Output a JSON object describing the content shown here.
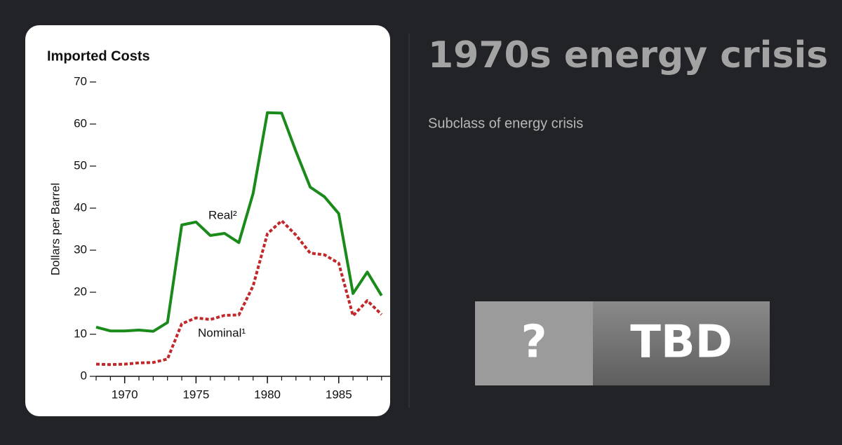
{
  "title": "1970s energy crisis",
  "subtitle": "Subclass of energy crisis",
  "badge": {
    "icon": "?",
    "text": "TBD"
  },
  "chart_data": {
    "type": "line",
    "title": "Imported Costs",
    "y_label": "Dollars per Barrel",
    "x": [
      1968,
      1969,
      1970,
      1971,
      1972,
      1973,
      1974,
      1975,
      1976,
      1977,
      1978,
      1979,
      1980,
      1981,
      1982,
      1983,
      1984,
      1985,
      1986,
      1987,
      1988
    ],
    "series": [
      {
        "name": "Real²",
        "color": "#1a8a1a",
        "dashed": false,
        "values": [
          11.7,
          10.8,
          10.8,
          11,
          10.7,
          12.8,
          36,
          36.7,
          33.5,
          34,
          31.8,
          43.5,
          62.7,
          62.6,
          53.5,
          45,
          42.7,
          38.7,
          19.7,
          24.8,
          19.2
        ]
      },
      {
        "name": "Nominal¹",
        "color": "#c0282a",
        "dashed": true,
        "values": [
          2.9,
          2.8,
          2.9,
          3.2,
          3.3,
          4.1,
          12.5,
          13.9,
          13.5,
          14.5,
          14.6,
          21.5,
          33.9,
          37,
          33.6,
          29.3,
          28.9,
          26.9,
          14.4,
          18,
          14.7
        ]
      }
    ],
    "xlim": [
      1968,
      1988.6
    ],
    "xticks": [
      1970,
      1975,
      1980,
      1985
    ],
    "ylim": [
      0,
      70
    ],
    "yticks": [
      0,
      10,
      20,
      30,
      40,
      50,
      60,
      70
    ]
  }
}
